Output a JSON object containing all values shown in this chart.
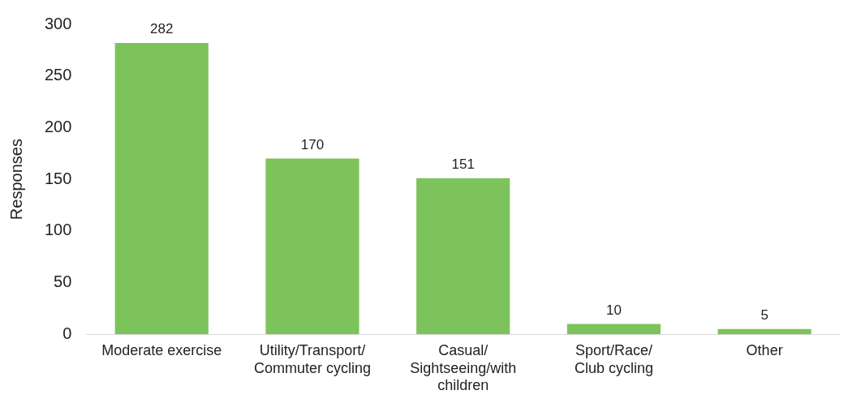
{
  "chart_data": {
    "type": "bar",
    "ylabel": "Responses",
    "categories": [
      "Moderate exercise",
      "Utility/Transport/\nCommuter cycling",
      "Casual/\nSightseeing/with\nchildren",
      "Sport/Race/\nClub cycling",
      "Other"
    ],
    "values": [
      282,
      170,
      151,
      10,
      5
    ],
    "color": "#7dc35b",
    "ylim": [
      0,
      300
    ],
    "yticks": [
      0,
      50,
      100,
      150,
      200,
      250,
      300
    ],
    "grid": false,
    "legend": false,
    "data_labels": true
  }
}
